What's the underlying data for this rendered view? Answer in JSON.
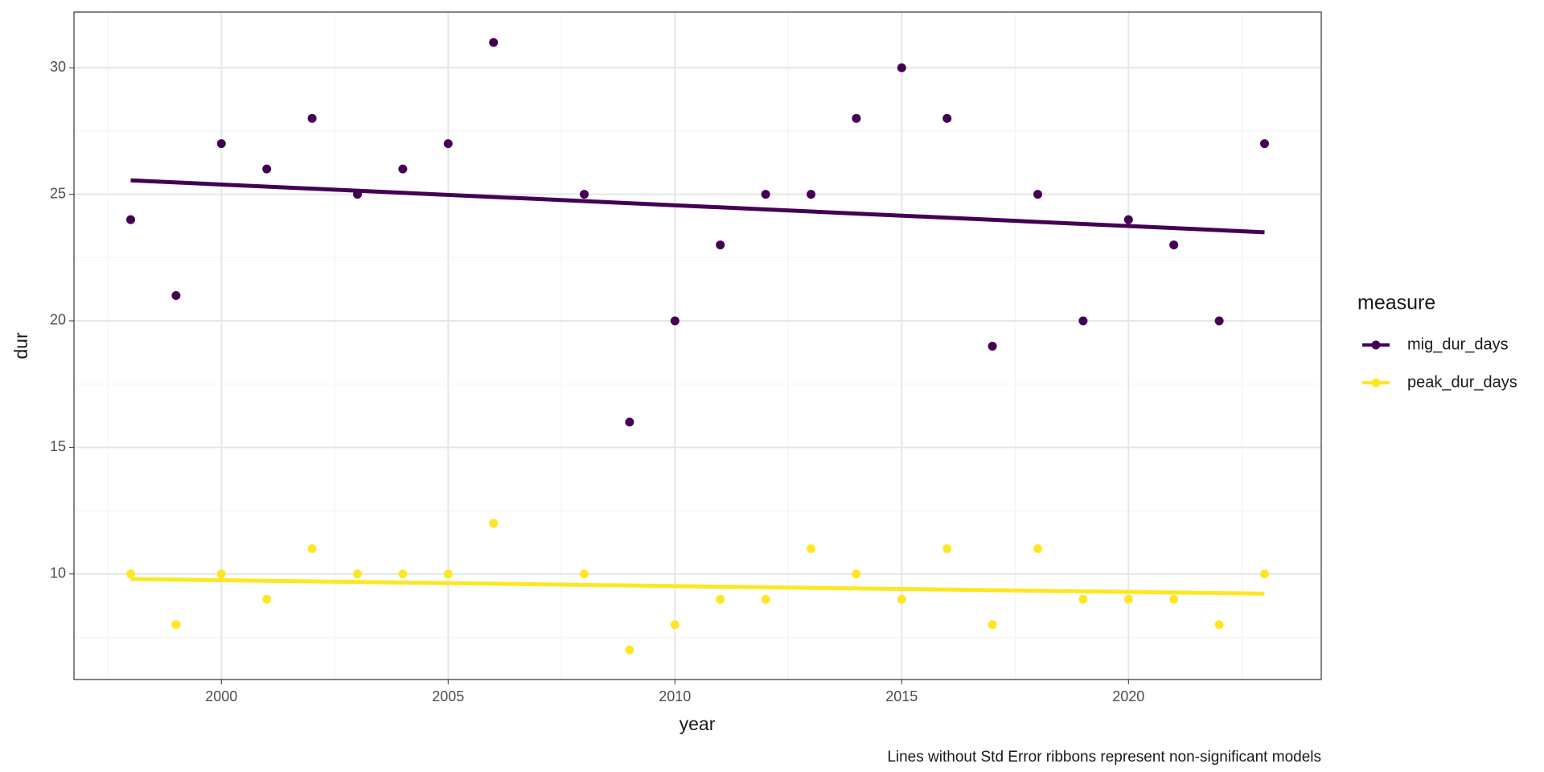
{
  "chart_data": {
    "type": "scatter",
    "x_label": "year",
    "y_label": "dur",
    "caption": "Lines without Std Error ribbons represent non-significant models",
    "legend_title": "measure",
    "x": [
      1998,
      1999,
      2000,
      2001,
      2002,
      2003,
      2004,
      2005,
      2006,
      2008,
      2009,
      2010,
      2011,
      2012,
      2013,
      2014,
      2015,
      2016,
      2017,
      2018,
      2019,
      2020,
      2021,
      2022,
      2023
    ],
    "series": [
      {
        "name": "mig_dur_days",
        "color": "#440154",
        "values": [
          24,
          21,
          27,
          26,
          28,
          25,
          26,
          27,
          31,
          25,
          16,
          20,
          23,
          25,
          25,
          28,
          30,
          28,
          19,
          25,
          20,
          24,
          23,
          20,
          27
        ],
        "trend_x": [
          1998,
          2023
        ],
        "trend": [
          25.55,
          23.5
        ]
      },
      {
        "name": "peak_dur_days",
        "color": "#fde725",
        "values": [
          10,
          8,
          10,
          9,
          11,
          10,
          10,
          10,
          12,
          10,
          7,
          8,
          9,
          9,
          11,
          10,
          9,
          11,
          8,
          11,
          9,
          9,
          9,
          8,
          10
        ],
        "trend_x": [
          1998,
          2023
        ],
        "trend": [
          9.8,
          9.22
        ]
      }
    ],
    "xlim": [
      1996.75,
      2024.25
    ],
    "ylim": [
      5.83,
      32.2
    ],
    "xticks": [
      2000,
      2005,
      2010,
      2015,
      2020
    ],
    "yticks": [
      10,
      15,
      20,
      25,
      30
    ],
    "x_minor_ticks": [
      1997.5,
      2002.5,
      2007.5,
      2012.5,
      2017.5,
      2022.5
    ],
    "y_minor_ticks": [
      7.5,
      12.5,
      17.5,
      22.5,
      27.5
    ],
    "grid": true
  }
}
